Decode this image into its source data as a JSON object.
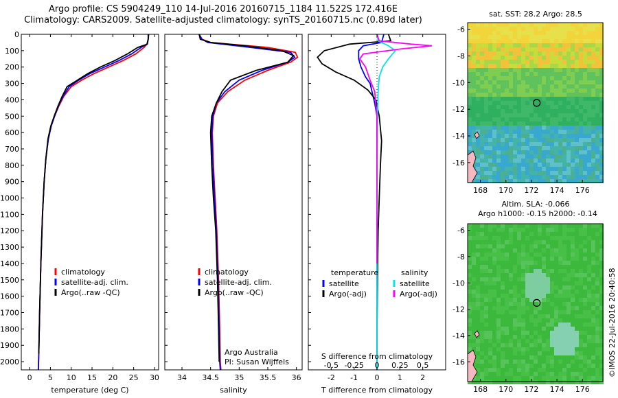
{
  "header": {
    "line1": "Argo profile: CS 5904249_110 14-Jul-2016 20160715_1184 11.522S 172.416E",
    "line2": "Climatology: CARS2009. Satellite-adjusted climatology: synTS_20160715.nc (0.89d later)"
  },
  "footer_vertical": "©IMOS 22-Jul-2016 20:40:58",
  "colors": {
    "climatology": "#ff0000",
    "satellite": "#0000ff",
    "argo": "#000000",
    "sal_satellite": "#00e5e5",
    "sal_argo": "#ff00ff"
  },
  "chart_data": [
    {
      "type": "line",
      "id": "temperature",
      "xlabel": "temperature (deg C)",
      "xlim": [
        -2,
        31
      ],
      "ylim": [
        2050,
        0
      ],
      "xticks": [
        0,
        5,
        10,
        15,
        20,
        25,
        30
      ],
      "yticks": [
        0,
        100,
        200,
        300,
        400,
        500,
        600,
        700,
        800,
        900,
        1000,
        1100,
        1200,
        1300,
        1400,
        1500,
        1600,
        1700,
        1800,
        1900,
        2000
      ],
      "legend": [
        "climatology",
        "satellite-adj. clim.",
        "Argo(..raw -QC)"
      ],
      "legend_position": "lower-center",
      "series": [
        {
          "name": "climatology",
          "color": "#ff0000",
          "x": [
            28.6,
            28.5,
            28.2,
            27.5,
            25.5,
            22.5,
            19,
            15.5,
            12.5,
            10,
            8.2,
            7,
            6,
            5.2,
            4.5,
            3.9,
            3.5,
            3.1,
            2.7,
            2.4,
            2.2,
            2.1
          ],
          "y": [
            0,
            30,
            60,
            80,
            120,
            160,
            200,
            240,
            280,
            320,
            380,
            440,
            500,
            560,
            640,
            760,
            900,
            1100,
            1400,
            1700,
            1950,
            2050
          ]
        },
        {
          "name": "satellite-adj. clim.",
          "color": "#0000ff",
          "x": [
            28.6,
            28.5,
            28.2,
            26.8,
            24.5,
            21.5,
            18,
            14.5,
            11.8,
            9.5,
            8,
            6.9,
            6,
            5.2,
            4.5,
            3.9,
            3.5,
            3.1,
            2.7,
            2.4,
            2.2,
            2.1
          ],
          "y": [
            0,
            30,
            60,
            80,
            120,
            160,
            200,
            240,
            280,
            320,
            380,
            440,
            500,
            560,
            640,
            760,
            900,
            1100,
            1400,
            1700,
            1950,
            2050
          ]
        },
        {
          "name": "Argo(..raw -QC)",
          "color": "#000000",
          "x": [
            28.5,
            28.5,
            28.3,
            26,
            23.5,
            20.5,
            17,
            14,
            11.5,
            9,
            7.8,
            6.8,
            5.9,
            5.1,
            4.4,
            3.9,
            3.5,
            3.1,
            2.7,
            2.4,
            2.2
          ],
          "y": [
            0,
            30,
            60,
            80,
            120,
            160,
            200,
            240,
            280,
            320,
            380,
            440,
            500,
            560,
            640,
            760,
            900,
            1100,
            1400,
            1700,
            1950
          ]
        }
      ]
    },
    {
      "type": "line",
      "id": "salinity",
      "xlabel": "salinity",
      "xlim": [
        33.7,
        36.1
      ],
      "ylim": [
        2050,
        0
      ],
      "xticks": [
        34,
        34.5,
        35,
        35.5,
        36
      ],
      "xticklabels": [
        "34",
        "34.5",
        "35",
        "35.5",
        "36"
      ],
      "legend": [
        "climatology",
        "satellite-adj. clim.",
        "Argo(..raw -QC)"
      ],
      "legend_position": "lower-center",
      "annotation": [
        "Argo Australia",
        "PI: Susan Wijffels"
      ],
      "series": [
        {
          "name": "climatology",
          "color": "#ff0000",
          "x": [
            34.3,
            34.35,
            34.5,
            35.5,
            35.98,
            36.02,
            35.9,
            35.5,
            35.1,
            34.8,
            34.62,
            34.55,
            34.53,
            34.55,
            34.58,
            34.61,
            34.64,
            34.66,
            34.67,
            34.68
          ],
          "y": [
            0,
            30,
            50,
            80,
            110,
            140,
            170,
            220,
            280,
            350,
            420,
            500,
            600,
            800,
            1000,
            1200,
            1500,
            1800,
            2000,
            2050
          ]
        },
        {
          "name": "satellite-adj. clim.",
          "color": "#0000ff",
          "x": [
            34.3,
            34.35,
            34.45,
            35.2,
            35.9,
            35.97,
            35.85,
            35.4,
            35,
            34.75,
            34.6,
            34.54,
            34.52,
            34.54,
            34.57,
            34.6,
            34.63,
            34.65,
            34.66,
            34.67
          ],
          "y": [
            0,
            30,
            50,
            80,
            110,
            140,
            170,
            220,
            280,
            350,
            420,
            500,
            600,
            800,
            1000,
            1200,
            1500,
            1800,
            2000,
            2050
          ]
        },
        {
          "name": "Argo(..raw -QC)",
          "color": "#000000",
          "x": [
            34.3,
            34.32,
            34.5,
            35.1,
            35.75,
            35.95,
            35.85,
            35.3,
            34.85,
            34.7,
            34.6,
            34.52,
            34.5,
            34.52,
            34.55,
            34.59,
            34.62,
            34.64,
            34.65
          ],
          "y": [
            0,
            30,
            50,
            70,
            100,
            130,
            170,
            220,
            280,
            350,
            420,
            500,
            600,
            800,
            1000,
            1200,
            1500,
            1800,
            2000
          ]
        }
      ]
    },
    {
      "type": "line",
      "id": "differences",
      "xlabel": "T difference from climatology",
      "xlabel_top": "S difference from climatology",
      "xlim": [
        -3,
        3
      ],
      "ylim": [
        2050,
        0
      ],
      "xticks": [
        -2,
        -1,
        0,
        1,
        2
      ],
      "sticks": [
        -0.5,
        -0.25,
        0,
        0.25,
        0.5
      ],
      "sticklabels": [
        "-0.5",
        "-0.25",
        "0",
        "0.25",
        "0.5"
      ],
      "legend_title_left": "temperature",
      "legend_title_right": "salinity",
      "legend": [
        "satellite",
        "Argo(-adj)",
        "satellite",
        "Argo(-adj)"
      ],
      "series": [
        {
          "name": "satellite",
          "color": "#0000ff",
          "x": [
            0.3,
            0.2,
            -0.6,
            -0.8,
            -0.8,
            -0.7,
            -0.5,
            -0.3,
            -0.2,
            -0.1,
            0,
            0,
            0,
            0
          ],
          "y": [
            0,
            50,
            70,
            100,
            150,
            200,
            260,
            300,
            360,
            420,
            500,
            800,
            1400,
            2050
          ]
        },
        {
          "name": "Argo(-adj)",
          "color": "#000000",
          "x": [
            0.5,
            0.6,
            -1.2,
            -2.3,
            -2.6,
            -2.4,
            -1.8,
            -1.0,
            -0.4,
            -0.05,
            0.1,
            0.2,
            0.15,
            0.1,
            0.05,
            0.02,
            0,
            0
          ],
          "y": [
            0,
            40,
            60,
            100,
            140,
            180,
            230,
            280,
            340,
            400,
            500,
            650,
            800,
            1000,
            1200,
            1500,
            1800,
            2000
          ]
        },
        {
          "name": "satellite",
          "color": "#00e5e5",
          "x": [
            0,
            0.05,
            0.5,
            0.8,
            0.5,
            0.25,
            0.1,
            0.05,
            0.02,
            0,
            0
          ],
          "y": [
            0,
            40,
            70,
            100,
            150,
            200,
            260,
            350,
            500,
            1000,
            2050
          ]
        },
        {
          "name": "Argo(-adj)",
          "color": "#ff00ff",
          "x": [
            0,
            0.1,
            1.5,
            2.4,
            1.0,
            -0.6,
            -0.75,
            -0.5,
            -0.3,
            -0.1,
            0,
            0
          ],
          "y": [
            0,
            40,
            60,
            70,
            90,
            120,
            150,
            200,
            280,
            350,
            500,
            1400
          ]
        }
      ]
    },
    {
      "type": "heatmap",
      "id": "sst-map",
      "title": "sat. SST: 28.2  Argo: 28.5",
      "xlim": [
        167,
        177.6
      ],
      "ylim": [
        -17.5,
        -5.5
      ],
      "xticks": [
        168,
        170,
        172,
        174,
        176
      ],
      "yticks": [
        -6,
        -8,
        -10,
        -12,
        -14,
        -16
      ],
      "marker": {
        "lon": 172.416,
        "lat": -11.522
      }
    },
    {
      "type": "heatmap",
      "id": "sla-map",
      "title": "Altim. SLA: -0.066",
      "subtitle": "Argo h1000: -0.15  h2000: -0.14",
      "xlim": [
        167,
        177.6
      ],
      "ylim": [
        -17.5,
        -5.5
      ],
      "xticks": [
        168,
        170,
        172,
        174,
        176
      ],
      "yticks": [
        -6,
        -8,
        -10,
        -12,
        -14,
        -16
      ],
      "marker": {
        "lon": 172.416,
        "lat": -11.522
      }
    }
  ]
}
